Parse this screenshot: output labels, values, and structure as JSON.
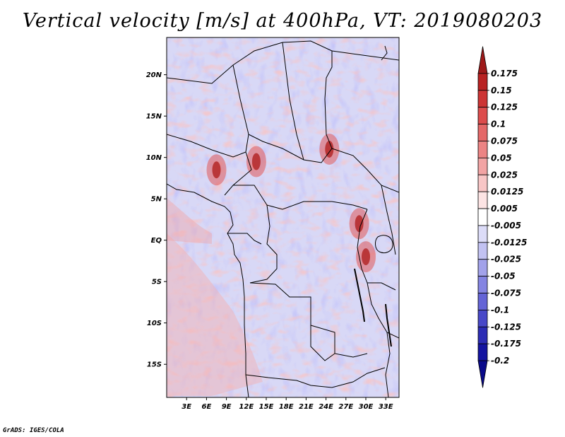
{
  "title": "Vertical velocity [m/s] at 400hPa, VT: 2019080203",
  "credit": "GrADS: IGES/COLA",
  "map": {
    "lat_labels": [
      "20N",
      "15N",
      "10N",
      "5N",
      "EQ",
      "5S",
      "10S",
      "15S"
    ],
    "lat_values": [
      20,
      15,
      10,
      5,
      0,
      -5,
      -10,
      -15
    ],
    "lon_labels": [
      "3E",
      "6E",
      "9E",
      "12E",
      "15E",
      "18E",
      "21E",
      "24E",
      "27E",
      "30E",
      "33E"
    ],
    "lon_values": [
      3,
      6,
      9,
      12,
      15,
      18,
      21,
      24,
      27,
      30,
      33
    ],
    "lon_range": [
      0,
      35
    ],
    "lat_range": [
      -19,
      24.5
    ]
  },
  "colorbar": {
    "labels": [
      "0.175",
      "0.15",
      "0.125",
      "0.1",
      "0.075",
      "0.05",
      "0.025",
      "0.0125",
      "0.005",
      "-0.005",
      "-0.0125",
      "-0.025",
      "-0.05",
      "-0.075",
      "-0.1",
      "-0.125",
      "-0.175",
      "-0.2"
    ],
    "colors": [
      "#9e1a1a",
      "#b82222",
      "#cc3434",
      "#dc4c4c",
      "#e46868",
      "#ec8484",
      "#f2a4a4",
      "#f8c6c6",
      "#fce4e4",
      "#ffffff",
      "#dcdcf8",
      "#c2c2f2",
      "#a2a2ea",
      "#8484e2",
      "#6464d6",
      "#4848c8",
      "#2c2cb4",
      "#1414a0",
      "#0a0a8a"
    ]
  },
  "features": {
    "bright_red_hotspots": [
      [
        13.5,
        9.5
      ],
      [
        7.5,
        8.5
      ],
      [
        29,
        2
      ],
      [
        24.5,
        11
      ],
      [
        30,
        -2
      ]
    ],
    "ocean_red_band": [
      [
        2,
        -5
      ],
      [
        8,
        -10
      ],
      [
        14,
        -14
      ]
    ],
    "lake_tanganyika": [
      [
        29.4,
        -3.5
      ],
      [
        29.6,
        -5
      ],
      [
        30.2,
        -6.5
      ],
      [
        30.6,
        -8.5
      ]
    ],
    "lake_malawi": [
      [
        34.5,
        -9.8
      ],
      [
        34.6,
        -11.5
      ],
      [
        34.9,
        -13.5
      ]
    ]
  }
}
